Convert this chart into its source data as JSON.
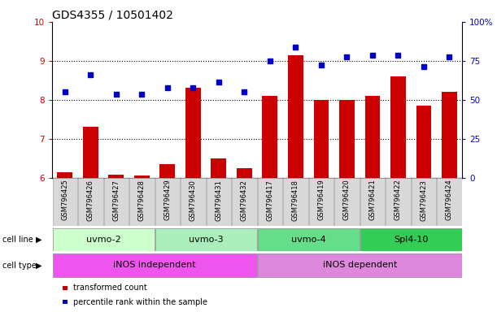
{
  "title": "GDS4355 / 10501402",
  "samples": [
    "GSM796425",
    "GSM796426",
    "GSM796427",
    "GSM796428",
    "GSM796429",
    "GSM796430",
    "GSM796431",
    "GSM796432",
    "GSM796417",
    "GSM796418",
    "GSM796419",
    "GSM796420",
    "GSM796421",
    "GSM796422",
    "GSM796423",
    "GSM796424"
  ],
  "bar_values": [
    6.15,
    7.3,
    6.08,
    6.05,
    6.35,
    8.3,
    6.5,
    6.25,
    8.1,
    9.15,
    8.0,
    8.0,
    8.1,
    8.6,
    7.85,
    8.2
  ],
  "dot_values": [
    8.2,
    8.65,
    8.15,
    8.15,
    8.3,
    8.3,
    8.45,
    8.2,
    9.0,
    9.35,
    8.9,
    9.1,
    9.15,
    9.15,
    8.85,
    9.1
  ],
  "bar_color": "#cc0000",
  "dot_color": "#0000cc",
  "ylim_left": [
    6,
    10
  ],
  "ylim_right": [
    0,
    100
  ],
  "yticks_left": [
    6,
    7,
    8,
    9,
    10
  ],
  "yticks_right": [
    0,
    25,
    50,
    75,
    100
  ],
  "ytick_labels_right": [
    "0",
    "25",
    "50",
    "75",
    "100%"
  ],
  "cell_lines": [
    {
      "label": "uvmo-2",
      "start": 0,
      "end": 3,
      "color": "#ccffcc"
    },
    {
      "label": "uvmo-3",
      "start": 4,
      "end": 7,
      "color": "#aaeebb"
    },
    {
      "label": "uvmo-4",
      "start": 8,
      "end": 11,
      "color": "#66dd88"
    },
    {
      "label": "Spl4-10",
      "start": 12,
      "end": 15,
      "color": "#33cc55"
    }
  ],
  "cell_types": [
    {
      "label": "iNOS independent",
      "start": 0,
      "end": 7,
      "color": "#ee55ee"
    },
    {
      "label": "iNOS dependent",
      "start": 8,
      "end": 15,
      "color": "#dd88dd"
    }
  ],
  "legend_items": [
    {
      "label": "transformed count",
      "color": "#cc0000"
    },
    {
      "label": "percentile rank within the sample",
      "color": "#0000cc"
    }
  ],
  "background_color": "white",
  "title_fontsize": 10,
  "tick_fontsize": 7.5,
  "sample_fontsize": 6,
  "cell_fontsize": 8
}
